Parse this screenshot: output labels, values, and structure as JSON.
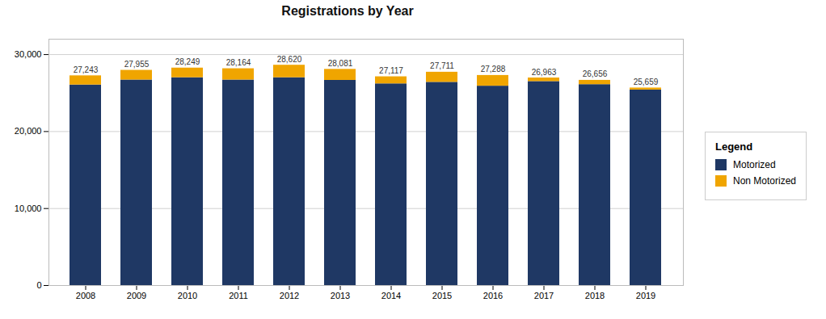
{
  "chart_data": {
    "type": "bar",
    "title": "Registrations by Year",
    "stacked": true,
    "categories": [
      "2008",
      "2009",
      "2010",
      "2011",
      "2012",
      "2013",
      "2014",
      "2015",
      "2016",
      "2017",
      "2018",
      "2019"
    ],
    "series": [
      {
        "name": "Motorized",
        "color": "#1f3864",
        "values": [
          26050,
          26700,
          27000,
          26700,
          27000,
          26650,
          26200,
          26400,
          25900,
          26500,
          26100,
          25400
        ]
      },
      {
        "name": "Non Motorized",
        "color": "#f0a500",
        "values": [
          1193,
          1255,
          1249,
          1464,
          1620,
          1431,
          917,
          1311,
          1388,
          463,
          556,
          259
        ]
      }
    ],
    "totals": [
      27243,
      27955,
      28249,
      28164,
      28620,
      28081,
      27117,
      27711,
      27288,
      26963,
      26656,
      25659
    ],
    "total_labels": [
      "27,243",
      "27,955",
      "28,249",
      "28,164",
      "28,620",
      "28,081",
      "27,117",
      "27,711",
      "27,288",
      "26,963",
      "26,656",
      "25,659"
    ],
    "ylim": [
      0,
      32000
    ],
    "yticks": [
      0,
      {
        "value": 10000,
        "label": "10,000"
      },
      {
        "value": 20000,
        "label": "20,000"
      },
      {
        "value": 30000,
        "label": "30,000"
      }
    ],
    "grid": true,
    "legend": "right",
    "legend_title": "Legend"
  }
}
